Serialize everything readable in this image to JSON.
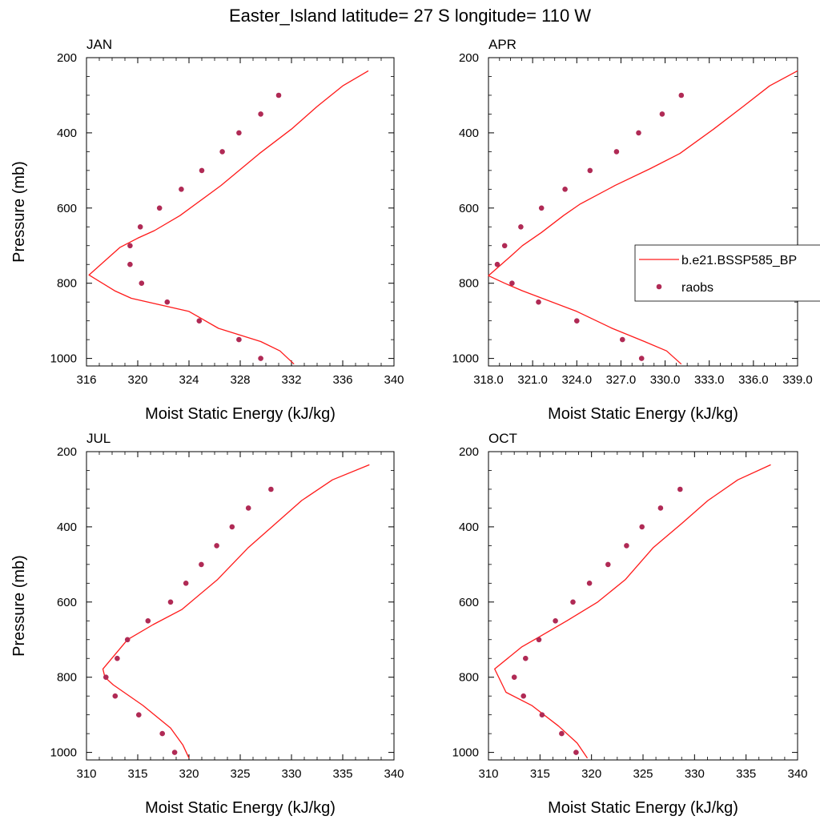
{
  "figure": {
    "title": "Easter_Island  latitude= 27 S longitude= 110 W"
  },
  "legend": {
    "model_label": "b.e21.BSSP585_BP",
    "obs_label": "raobs"
  },
  "colors": {
    "model_line": "#ff1a1a",
    "obs_marker": "#b02a55"
  },
  "chart_data": [
    {
      "type": "line",
      "panel": "JAN",
      "title": "JAN",
      "xlabel": "Moist Static Energy (kJ/kg)",
      "ylabel": "Pressure (mb)",
      "xlim": [
        316,
        340
      ],
      "ylim": [
        1020,
        200
      ],
      "y_reversed": true,
      "xticks": [
        316,
        320,
        324,
        328,
        332,
        336,
        340
      ],
      "xtick_labels": [
        "316",
        "320",
        "324",
        "328",
        "332",
        "336",
        "340"
      ],
      "yticks": [
        200,
        400,
        600,
        800,
        1000
      ],
      "ytick_labels": [
        "200",
        "400",
        "600",
        "800",
        "1000"
      ],
      "series": [
        {
          "name": "b.e21.BSSP585_BP",
          "kind": "line",
          "x": [
            338.0,
            336.0,
            334.0,
            332.0,
            329.5,
            326.5,
            323.3,
            321.3,
            320.0,
            318.6,
            316.2,
            318.2,
            319.5,
            324.0,
            326.3,
            329.6,
            331.1,
            332.2
          ],
          "y": [
            235,
            275,
            330,
            390,
            455,
            540,
            620,
            660,
            680,
            705,
            778,
            820,
            840,
            875,
            920,
            955,
            980,
            1015
          ]
        },
        {
          "name": "raobs",
          "kind": "scatter",
          "x": [
            331.0,
            329.6,
            327.9,
            326.6,
            325.0,
            323.4,
            321.7,
            320.2,
            319.4,
            319.4,
            320.3,
            322.3,
            324.8,
            327.9,
            329.6
          ],
          "y": [
            300,
            350,
            400,
            450,
            500,
            550,
            600,
            650,
            700,
            750,
            800,
            850,
            900,
            950,
            1000
          ]
        }
      ]
    },
    {
      "type": "line",
      "panel": "APR",
      "title": "APR",
      "xlabel": "Moist Static Energy (kJ/kg)",
      "ylabel": "",
      "xlim": [
        318,
        339
      ],
      "ylim": [
        1020,
        200
      ],
      "y_reversed": true,
      "xticks": [
        318,
        321,
        324,
        327,
        330,
        333,
        336,
        339
      ],
      "xtick_labels": [
        "318.0",
        "321.0",
        "324.0",
        "327.0",
        "330.0",
        "333.0",
        "336.0",
        "339.0"
      ],
      "yticks": [
        200,
        400,
        600,
        800,
        1000
      ],
      "ytick_labels": [
        "200",
        "400",
        "600",
        "800",
        "1000"
      ],
      "series": [
        {
          "name": "b.e21.BSSP585_BP",
          "kind": "line",
          "x": [
            339.0,
            337.1,
            335.3,
            333.3,
            331.0,
            329.0,
            326.6,
            324.2,
            323.1,
            321.6,
            320.3,
            319.6,
            318.0,
            319.1,
            320.3,
            324.0,
            326.4,
            328.6,
            330.1,
            331.1
          ],
          "y": [
            235,
            275,
            330,
            390,
            455,
            495,
            540,
            590,
            620,
            665,
            700,
            725,
            780,
            800,
            820,
            875,
            920,
            955,
            980,
            1015
          ]
        },
        {
          "name": "raobs",
          "kind": "scatter",
          "x": [
            331.1,
            329.8,
            328.2,
            326.7,
            324.9,
            323.2,
            321.6,
            320.2,
            319.1,
            318.6,
            319.6,
            321.4,
            324.0,
            327.1,
            328.4
          ],
          "y": [
            300,
            350,
            400,
            450,
            500,
            550,
            600,
            650,
            700,
            750,
            800,
            850,
            900,
            950,
            1000
          ]
        }
      ]
    },
    {
      "type": "line",
      "panel": "JUL",
      "title": "JUL",
      "xlabel": "Moist Static Energy (kJ/kg)",
      "ylabel": "Pressure (mb)",
      "xlim": [
        310,
        340
      ],
      "ylim": [
        1020,
        200
      ],
      "y_reversed": true,
      "xticks": [
        310,
        315,
        320,
        325,
        330,
        335,
        340
      ],
      "xtick_labels": [
        "310",
        "315",
        "320",
        "325",
        "330",
        "335",
        "340"
      ],
      "yticks": [
        200,
        400,
        600,
        800,
        1000
      ],
      "ytick_labels": [
        "200",
        "400",
        "600",
        "800",
        "1000"
      ],
      "series": [
        {
          "name": "b.e21.BSSP585_BP",
          "kind": "line",
          "x": [
            337.6,
            334.0,
            331.0,
            328.5,
            325.8,
            322.8,
            319.3,
            316.5,
            314.0,
            311.6,
            311.8,
            312.6,
            315.5,
            318.2,
            319.4,
            320.0
          ],
          "y": [
            235,
            275,
            330,
            390,
            455,
            540,
            620,
            660,
            700,
            778,
            800,
            820,
            875,
            935,
            980,
            1015
          ]
        },
        {
          "name": "raobs",
          "kind": "scatter",
          "x": [
            328.0,
            325.8,
            324.2,
            322.7,
            321.2,
            319.7,
            318.2,
            316.0,
            314.0,
            313.0,
            311.9,
            312.8,
            315.1,
            317.4,
            318.6
          ],
          "y": [
            300,
            350,
            400,
            450,
            500,
            550,
            600,
            650,
            700,
            750,
            800,
            850,
            900,
            950,
            1000
          ]
        }
      ]
    },
    {
      "type": "line",
      "panel": "OCT",
      "title": "OCT",
      "xlabel": "Moist Static Energy (kJ/kg)",
      "ylabel": "",
      "xlim": [
        310,
        340
      ],
      "ylim": [
        1020,
        200
      ],
      "y_reversed": true,
      "xticks": [
        310,
        315,
        320,
        325,
        330,
        335,
        340
      ],
      "xtick_labels": [
        "310",
        "315",
        "320",
        "325",
        "330",
        "335",
        "340"
      ],
      "yticks": [
        200,
        400,
        600,
        800,
        1000
      ],
      "ytick_labels": [
        "200",
        "400",
        "600",
        "800",
        "1000"
      ],
      "series": [
        {
          "name": "b.e21.BSSP585_BP",
          "kind": "line",
          "x": [
            337.4,
            334.2,
            331.3,
            328.8,
            326.0,
            323.3,
            320.6,
            317.6,
            315.1,
            313.2,
            310.6,
            311.7,
            314.2,
            316.8,
            318.6,
            319.6
          ],
          "y": [
            235,
            275,
            330,
            390,
            455,
            540,
            600,
            650,
            690,
            720,
            778,
            840,
            875,
            930,
            975,
            1015
          ]
        },
        {
          "name": "raobs",
          "kind": "scatter",
          "x": [
            328.6,
            326.7,
            324.9,
            323.4,
            321.6,
            319.8,
            318.2,
            316.5,
            314.9,
            313.6,
            312.5,
            313.4,
            315.2,
            317.1,
            318.5
          ],
          "y": [
            300,
            350,
            400,
            450,
            500,
            550,
            600,
            650,
            700,
            750,
            800,
            850,
            900,
            950,
            1000
          ]
        }
      ]
    }
  ]
}
